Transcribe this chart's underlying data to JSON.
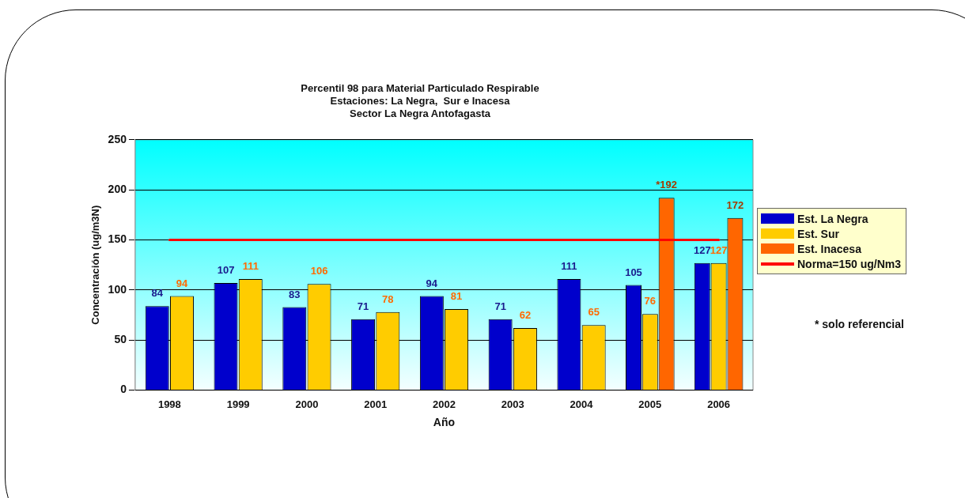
{
  "chart_data": {
    "type": "bar",
    "title": "Percentil 98 para Material Particulado Respirable\nEstaciones: La Negra,  Sur e Inacesa\nSector La Negra Antofagasta",
    "xlabel": "Año",
    "ylabel": "Concentración (ug/m3N)",
    "categories": [
      "1998",
      "1999",
      "2000",
      "2001",
      "2002",
      "2003",
      "2004",
      "2005",
      "2006"
    ],
    "series": [
      {
        "name": "Est. La Negra",
        "color": "#0000cc",
        "values": [
          84,
          107,
          83,
          71,
          94,
          71,
          111,
          105,
          127
        ]
      },
      {
        "name": "Est. Sur",
        "color": "#ffcc00",
        "values": [
          94,
          111,
          106,
          78,
          81,
          62,
          65,
          76,
          127
        ]
      },
      {
        "name": "Est. Inacesa",
        "color": "#ff6600",
        "values": [
          null,
          null,
          null,
          null,
          null,
          null,
          null,
          192,
          172
        ],
        "value_labels": [
          null,
          null,
          null,
          null,
          null,
          null,
          null,
          "*192",
          "172"
        ]
      }
    ],
    "ylim": [
      0,
      250
    ],
    "yticks": [
      0,
      50,
      100,
      150,
      200,
      250
    ],
    "grid": "y",
    "legend": "right",
    "data_labels": true,
    "ref_lines": [
      {
        "axis": "y",
        "value": 150,
        "label": "Norma=150 ug/Nm3",
        "color": "#ff0000"
      }
    ],
    "annotations": [
      "* solo referencial"
    ]
  }
}
